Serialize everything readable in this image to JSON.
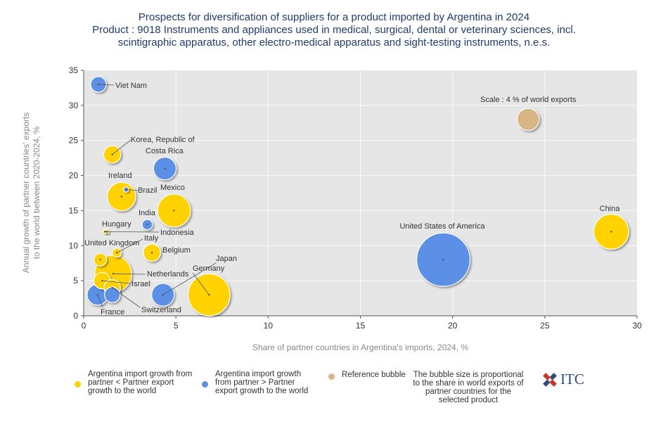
{
  "title": {
    "line1": "Prospects for diversification of suppliers for a product imported by Argentina in 2024",
    "line2": "Product : 9018 Instruments and appliances used in medical, surgical, dental or veterinary sciences, incl.",
    "line3": "scintigraphic apparatus, other electro-medical apparatus and sight-testing instruments, n.e.s."
  },
  "chart_data": {
    "type": "scatter",
    "xlabel": "Share of partner countries in Argentina's imports, 2024, %",
    "ylabel_line1": "Annual growth of partner countries' exports",
    "ylabel_line2": "to the world between 2020-2024, %",
    "xlim": [
      0,
      30
    ],
    "ylim": [
      0,
      35
    ],
    "xticks": [
      0,
      5,
      10,
      15,
      20,
      25,
      30
    ],
    "yticks": [
      0,
      5,
      10,
      15,
      20,
      25,
      30,
      35
    ],
    "grid": true,
    "colors": {
      "yellow": "#ffd200",
      "blue": "#5b8fe6",
      "reference": "#d8b486",
      "plot_bg": "#e6e6e6"
    },
    "points": [
      {
        "label": "China",
        "x": 28.6,
        "y": 12,
        "size": 4.5,
        "group": "yellow"
      },
      {
        "label": "United States of America",
        "x": 19.5,
        "y": 8,
        "size": 10.5,
        "group": "blue"
      },
      {
        "label": "Germany",
        "x": 6.8,
        "y": 3,
        "size": 6.5,
        "group": "yellow"
      },
      {
        "label": "Mexico",
        "x": 4.9,
        "y": 15,
        "size": 4.0,
        "group": "yellow"
      },
      {
        "label": "Japan",
        "x": 4.3,
        "y": 3,
        "size": 1.9,
        "group": "blue"
      },
      {
        "label": "Costa Rica",
        "x": 4.4,
        "y": 21,
        "size": 1.9,
        "group": "blue"
      },
      {
        "label": "Belgium",
        "x": 3.7,
        "y": 9,
        "size": 1.1,
        "group": "yellow"
      },
      {
        "label": "India",
        "x": 3.45,
        "y": 13,
        "size": 0.4,
        "group": "blue"
      },
      {
        "label": "Ireland",
        "x": 2.05,
        "y": 17,
        "size": 3.0,
        "group": "yellow"
      },
      {
        "label": "Brazil",
        "x": 2.3,
        "y": 18,
        "size": 0.1,
        "group": "blue"
      },
      {
        "label": "Korea, Republic of",
        "x": 1.55,
        "y": 23,
        "size": 1.1,
        "group": "yellow"
      },
      {
        "label": "Viet Nam",
        "x": 0.8,
        "y": 33,
        "size": 0.9,
        "group": "blue"
      },
      {
        "label": "Hungary",
        "x": 1.25,
        "y": 12,
        "size": 0.08,
        "group": "yellow"
      },
      {
        "label": "Indonesia",
        "x": 1.15,
        "y": 12,
        "size": 0.05,
        "group": "yellow"
      },
      {
        "label": "Italy",
        "x": 1.8,
        "y": 9,
        "size": 0.3,
        "group": "yellow"
      },
      {
        "label": "United Kingdom",
        "x": 0.9,
        "y": 8,
        "size": 0.6,
        "group": "yellow"
      },
      {
        "label": "Netherlands",
        "x": 1.6,
        "y": 6,
        "size": 5.0,
        "group": "yellow"
      },
      {
        "label": "Israel",
        "x": 1.0,
        "y": 5,
        "size": 1.0,
        "group": "yellow"
      },
      {
        "label": "Switzerland",
        "x": 1.55,
        "y": 4,
        "size": 1.0,
        "group": "yellow"
      },
      {
        "label": "France",
        "x": 0.75,
        "y": 3,
        "size": 1.6,
        "group": "blue"
      },
      {
        "label": "",
        "x": 1.55,
        "y": 3,
        "size": 0.9,
        "group": "blue"
      }
    ],
    "reference_bubble": {
      "label": "Scale : 4 % of world exports",
      "x": 24.1,
      "y": 28,
      "size": 1.8,
      "group": "reference"
    }
  },
  "legend": {
    "item1": "Argentina import growth from partner < Partner export growth to the world",
    "item2": "Argentina import growth from partner > Partner export growth to the world",
    "item3": "Reference bubble",
    "item4": "The bubble size is proportional to the share in world exports of partner countries for the selected product"
  },
  "logo_text": "ITC"
}
